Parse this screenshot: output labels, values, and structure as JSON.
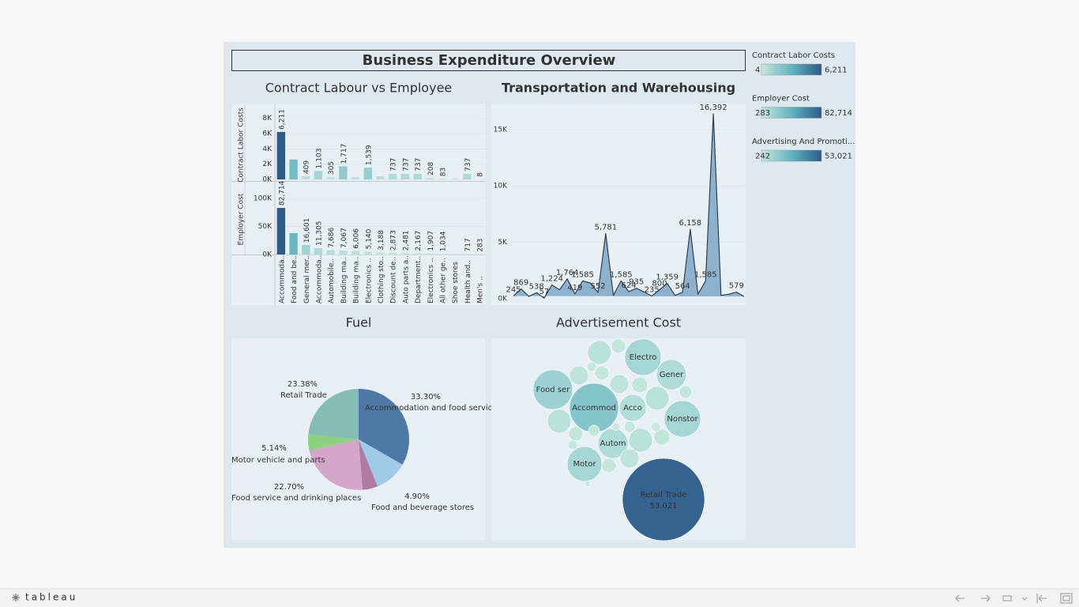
{
  "dashboard_title": "Business Expenditure Overview",
  "legends": [
    {
      "title": "Contract Labor Costs",
      "ticks": [
        4,
        {
          "value": 6211,
          "label": "6,211"
        }
      ],
      "colors": [
        "#c6e8dc",
        "#62b3c2",
        "#2b5b89"
      ]
    },
    {
      "title": "Employer Cost",
      "ticks": [
        283,
        {
          "value": 82714,
          "label": "82,714"
        }
      ],
      "colors": [
        "#c6e8dc",
        "#62b3c2",
        "#2b5b89"
      ]
    },
    {
      "title": "Advertising And Promoti...",
      "ticks": [
        242,
        {
          "value": 53021,
          "label": "53,021"
        }
      ],
      "colors": [
        "#c6e8dc",
        "#62b3c2",
        "#2b5b89"
      ]
    }
  ],
  "chart_data": [
    {
      "type": "bar",
      "title": "Contract Labour vs Employee",
      "categories": [
        "Accommoda..",
        "Food and be..",
        "General mer..",
        "Accommoda..",
        "Automobile..",
        "Building ma..",
        "Building ma..",
        "Electronics ..",
        "Clothing sto..",
        "Discount de..",
        "Auto parts a..",
        "Department..",
        "Electronics ..",
        "All other ge..",
        "Shoe stores",
        "Health and..",
        "Men's .."
      ],
      "series": [
        {
          "name": "Contract Labor Costs",
          "legend": 0,
          "values": [
            6211,
            2600,
            409,
            1103,
            305,
            1717,
            300,
            1539,
            400,
            737,
            737,
            737,
            208,
            83,
            100,
            737,
            8
          ],
          "value_labels": [
            "6,211",
            null,
            "409",
            "1,103",
            "305",
            "1,717",
            null,
            "1,539",
            null,
            "737",
            "737",
            "737",
            "208",
            "83",
            null,
            "737",
            "8"
          ],
          "ylim": [
            0,
            9000
          ],
          "yticks": [
            {
              "value": 0,
              "label": "0K"
            },
            {
              "value": 2000,
              "label": "2K"
            },
            {
              "value": 4000,
              "label": "4K"
            },
            {
              "value": 6000,
              "label": "6K"
            },
            {
              "value": 8000,
              "label": "8K"
            }
          ]
        },
        {
          "name": "Employer Cost",
          "legend": 1,
          "values": [
            82714,
            38000,
            16601,
            11305,
            7686,
            7067,
            6006,
            5140,
            3188,
            2873,
            2481,
            2167,
            1907,
            1034,
            900,
            717,
            283
          ],
          "value_labels": [
            "82,714",
            null,
            "16,601",
            "11,305",
            "7,686",
            "7,067",
            "6,006",
            "5,140",
            "3,188",
            "2,873",
            "2,481",
            "2,167",
            "1,907",
            "1,034",
            null,
            "717",
            "283"
          ],
          "ylim": [
            0,
            125000
          ],
          "yticks": [
            {
              "value": 0,
              "label": "0K"
            },
            {
              "value": 50000,
              "label": "50K"
            },
            {
              "value": 100000,
              "label": "100K"
            }
          ]
        }
      ]
    },
    {
      "type": "area",
      "title": "Transportation and Warehousing",
      "color": "#7ea6c6",
      "line_color": "#2e3f52",
      "values": [
        245,
        869,
        200,
        538,
        57,
        1224,
        800,
        1764,
        419,
        1585,
        1400,
        552,
        5781,
        300,
        1585,
        624,
        935,
        600,
        235,
        800,
        1359,
        300,
        564,
        6158,
        400,
        1585,
        16392,
        300,
        400,
        579,
        200
      ],
      "value_labels": [
        "245",
        "869",
        null,
        "538",
        "57",
        "1,224",
        null,
        "1,764",
        "419",
        "1,585",
        null,
        "552",
        "5,781",
        null,
        "1,585",
        "624",
        "935",
        null,
        "235",
        "800",
        "1,359",
        null,
        "564",
        "6,158",
        null,
        "1,585",
        "16,392",
        null,
        null,
        "579",
        null
      ],
      "ylim": [
        0,
        17300
      ],
      "yticks": [
        {
          "value": 0,
          "label": "0K"
        },
        {
          "value": 5000,
          "label": "5K"
        },
        {
          "value": 10000,
          "label": "10K"
        },
        {
          "value": 15000,
          "label": "15K"
        }
      ]
    },
    {
      "type": "pie",
      "title": "Fuel",
      "categories": [
        "Accommodation and food services",
        null,
        "Food and beverage stores",
        "Food service and drinking places",
        "Motor vehicle and parts",
        "Retail Trade"
      ],
      "values": [
        33.3,
        10.58,
        4.9,
        22.7,
        5.14,
        23.38
      ],
      "value_labels": [
        "33.30%",
        null,
        "4.90%",
        "22.70%",
        "5.14%",
        "23.38%"
      ],
      "colors": [
        "#4e79a7",
        "#a0cbe8",
        "#b07aa1",
        "#d4a6c8",
        "#8cd17d",
        "#86bcb6"
      ]
    },
    {
      "type": "bubble",
      "title": "Advertisement Cost",
      "legend": 2,
      "categories": [
        "Retail Trade",
        "Accommod",
        "Food ser",
        "Electro",
        "Nonstor",
        "Gener",
        "Autom",
        "Motor",
        "Acco",
        null,
        null,
        null,
        null,
        null,
        null,
        null,
        null,
        null,
        null,
        null,
        null,
        null,
        null,
        null,
        null,
        null,
        null,
        null,
        null,
        null
      ],
      "values": [
        53021,
        18844,
        12255,
        10373,
        10373,
        7079,
        7079,
        9491,
        5667,
        4412,
        1589,
        2824,
        1589,
        706,
        2824,
        1961,
        4412,
        1255,
        4412,
        1589,
        706,
        961,
        4412,
        1961,
        2824,
        1589,
        961,
        706,
        490,
        242
      ],
      "value_labels": [
        "53,021",
        null,
        null,
        null,
        null,
        null,
        null,
        null,
        null,
        null,
        null,
        null,
        null,
        null,
        null,
        null,
        null,
        null,
        null,
        null,
        null,
        null,
        null,
        null,
        null,
        null,
        null,
        null,
        null,
        null
      ]
    }
  ],
  "footer": {
    "logo": "tableau"
  }
}
